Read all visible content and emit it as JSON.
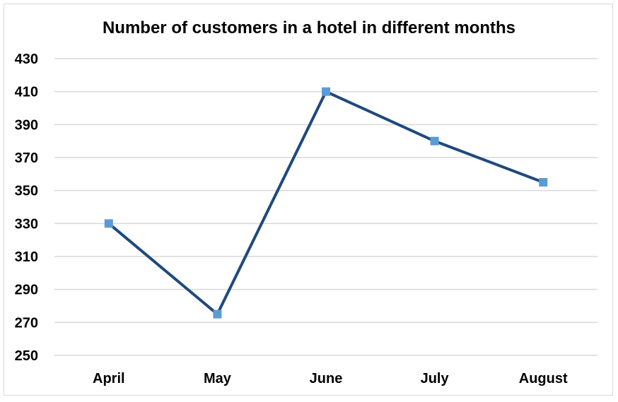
{
  "chart_data": {
    "type": "line",
    "title": "Number of customers in a hotel in different months",
    "xlabel": "",
    "ylabel": "",
    "categories": [
      "April",
      "May",
      "June",
      "July",
      "August"
    ],
    "series": [
      {
        "values": [
          330,
          275,
          410,
          380,
          355
        ],
        "line_color": "#1f497d",
        "marker_color": "#5b9bd5",
        "marker": "square"
      }
    ],
    "ylim": [
      250,
      430
    ],
    "yticks": [
      250,
      270,
      290,
      310,
      330,
      350,
      370,
      390,
      410,
      430
    ],
    "grid": true,
    "legend": "none"
  }
}
